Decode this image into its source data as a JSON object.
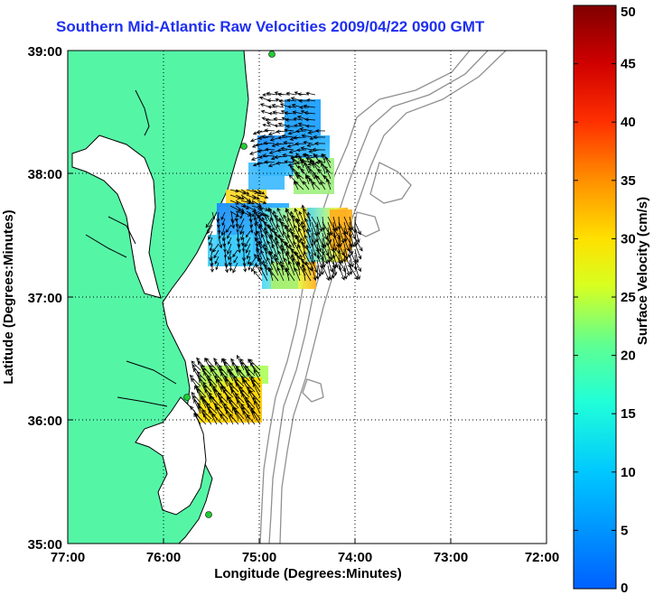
{
  "title": "Southern Mid-Atlantic Raw Velocities 2009/04/22 0900 GMT",
  "x_axis": {
    "label": "Longitude (Degrees:Minutes)",
    "ticks": [
      "77:00",
      "76:00",
      "75:00",
      "74:00",
      "73:00",
      "72:00"
    ]
  },
  "y_axis": {
    "label": "Latitude (Degrees:Minutes)",
    "ticks": [
      "39:00",
      "38:00",
      "37:00",
      "36:00",
      "35:00"
    ]
  },
  "colorbar": {
    "label": "Surface Velocity (cm/s)",
    "ticks": [
      "50",
      "45",
      "40",
      "35",
      "30",
      "25",
      "20",
      "15",
      "10",
      "5",
      "0"
    ],
    "range": [
      0,
      50
    ],
    "colors": [
      "#0060ff",
      "#00c8ff",
      "#40ffc0",
      "#d0ff20",
      "#ffd000",
      "#ff6000",
      "#e00000",
      "#800000"
    ]
  },
  "colors": {
    "land": "#55f5a6",
    "land_outline": "#000000",
    "bathymetry": "#909090",
    "station": "#22cc33",
    "title": "#1f2ff0"
  }
}
